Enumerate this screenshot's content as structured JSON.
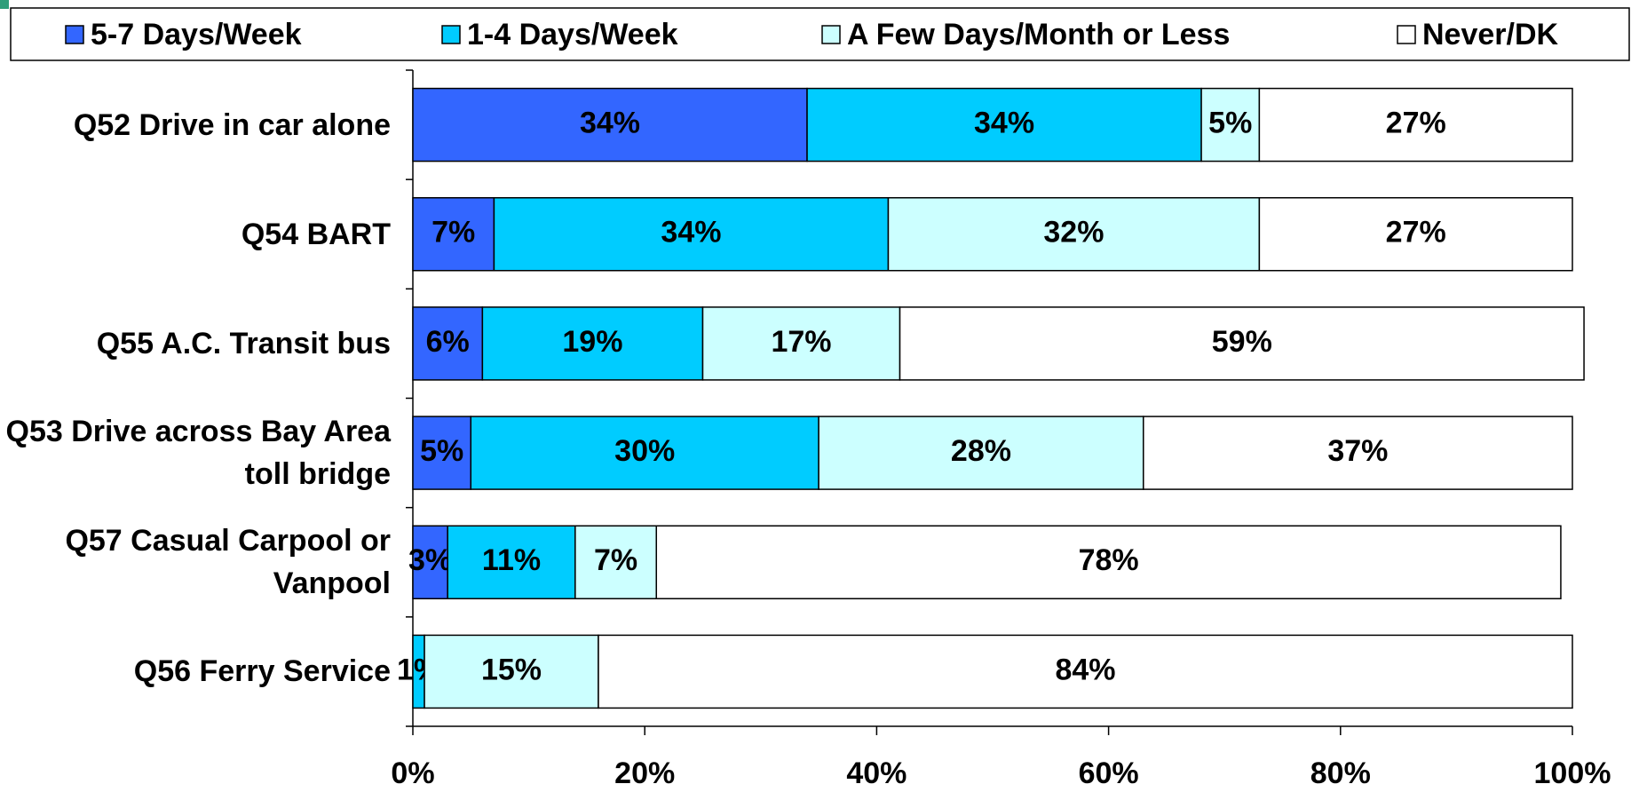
{
  "chart_data": {
    "type": "stacked_barh",
    "categories": [
      "Q52 Drive in car alone",
      "Q54 BART",
      "Q55 A.C. Transit bus",
      "Q53 Drive across Bay Area toll bridge",
      "Q57 Casual Carpool or Vanpool",
      "Q56 Ferry Service"
    ],
    "series": [
      {
        "name": "5-7 Days/Week",
        "color": "#3366ff",
        "values": [
          34,
          7,
          6,
          5,
          3,
          0
        ],
        "value_labels": [
          "34%",
          "7%",
          "6%",
          "5%",
          "3%",
          null
        ]
      },
      {
        "name": "1-4 Days/Week",
        "color": "#00ccff",
        "values": [
          34,
          34,
          19,
          30,
          11,
          1
        ],
        "value_labels": [
          "34%",
          "34%",
          "19%",
          "30%",
          "11%",
          "1%"
        ]
      },
      {
        "name": "A Few Days/Month or Less",
        "color": "#ccffff",
        "values": [
          5,
          32,
          17,
          28,
          7,
          15
        ],
        "value_labels": [
          "5%",
          "32%",
          "17%",
          "28%",
          "7%",
          "15%"
        ]
      },
      {
        "name": "Never/DK",
        "color": "#ffffff",
        "values": [
          27,
          27,
          59,
          37,
          78,
          84
        ],
        "value_labels": [
          "27%",
          "27%",
          "59%",
          "37%",
          "78%",
          "84%"
        ]
      }
    ],
    "xlim": [
      0,
      100
    ],
    "xticks": [
      {
        "value": 0,
        "label": "0%"
      },
      {
        "value": 20,
        "label": "20%"
      },
      {
        "value": 40,
        "label": "40%"
      },
      {
        "value": 60,
        "label": "60%"
      },
      {
        "value": 80,
        "label": "80%"
      },
      {
        "value": 100,
        "label": "100%"
      }
    ],
    "legend": "top"
  }
}
